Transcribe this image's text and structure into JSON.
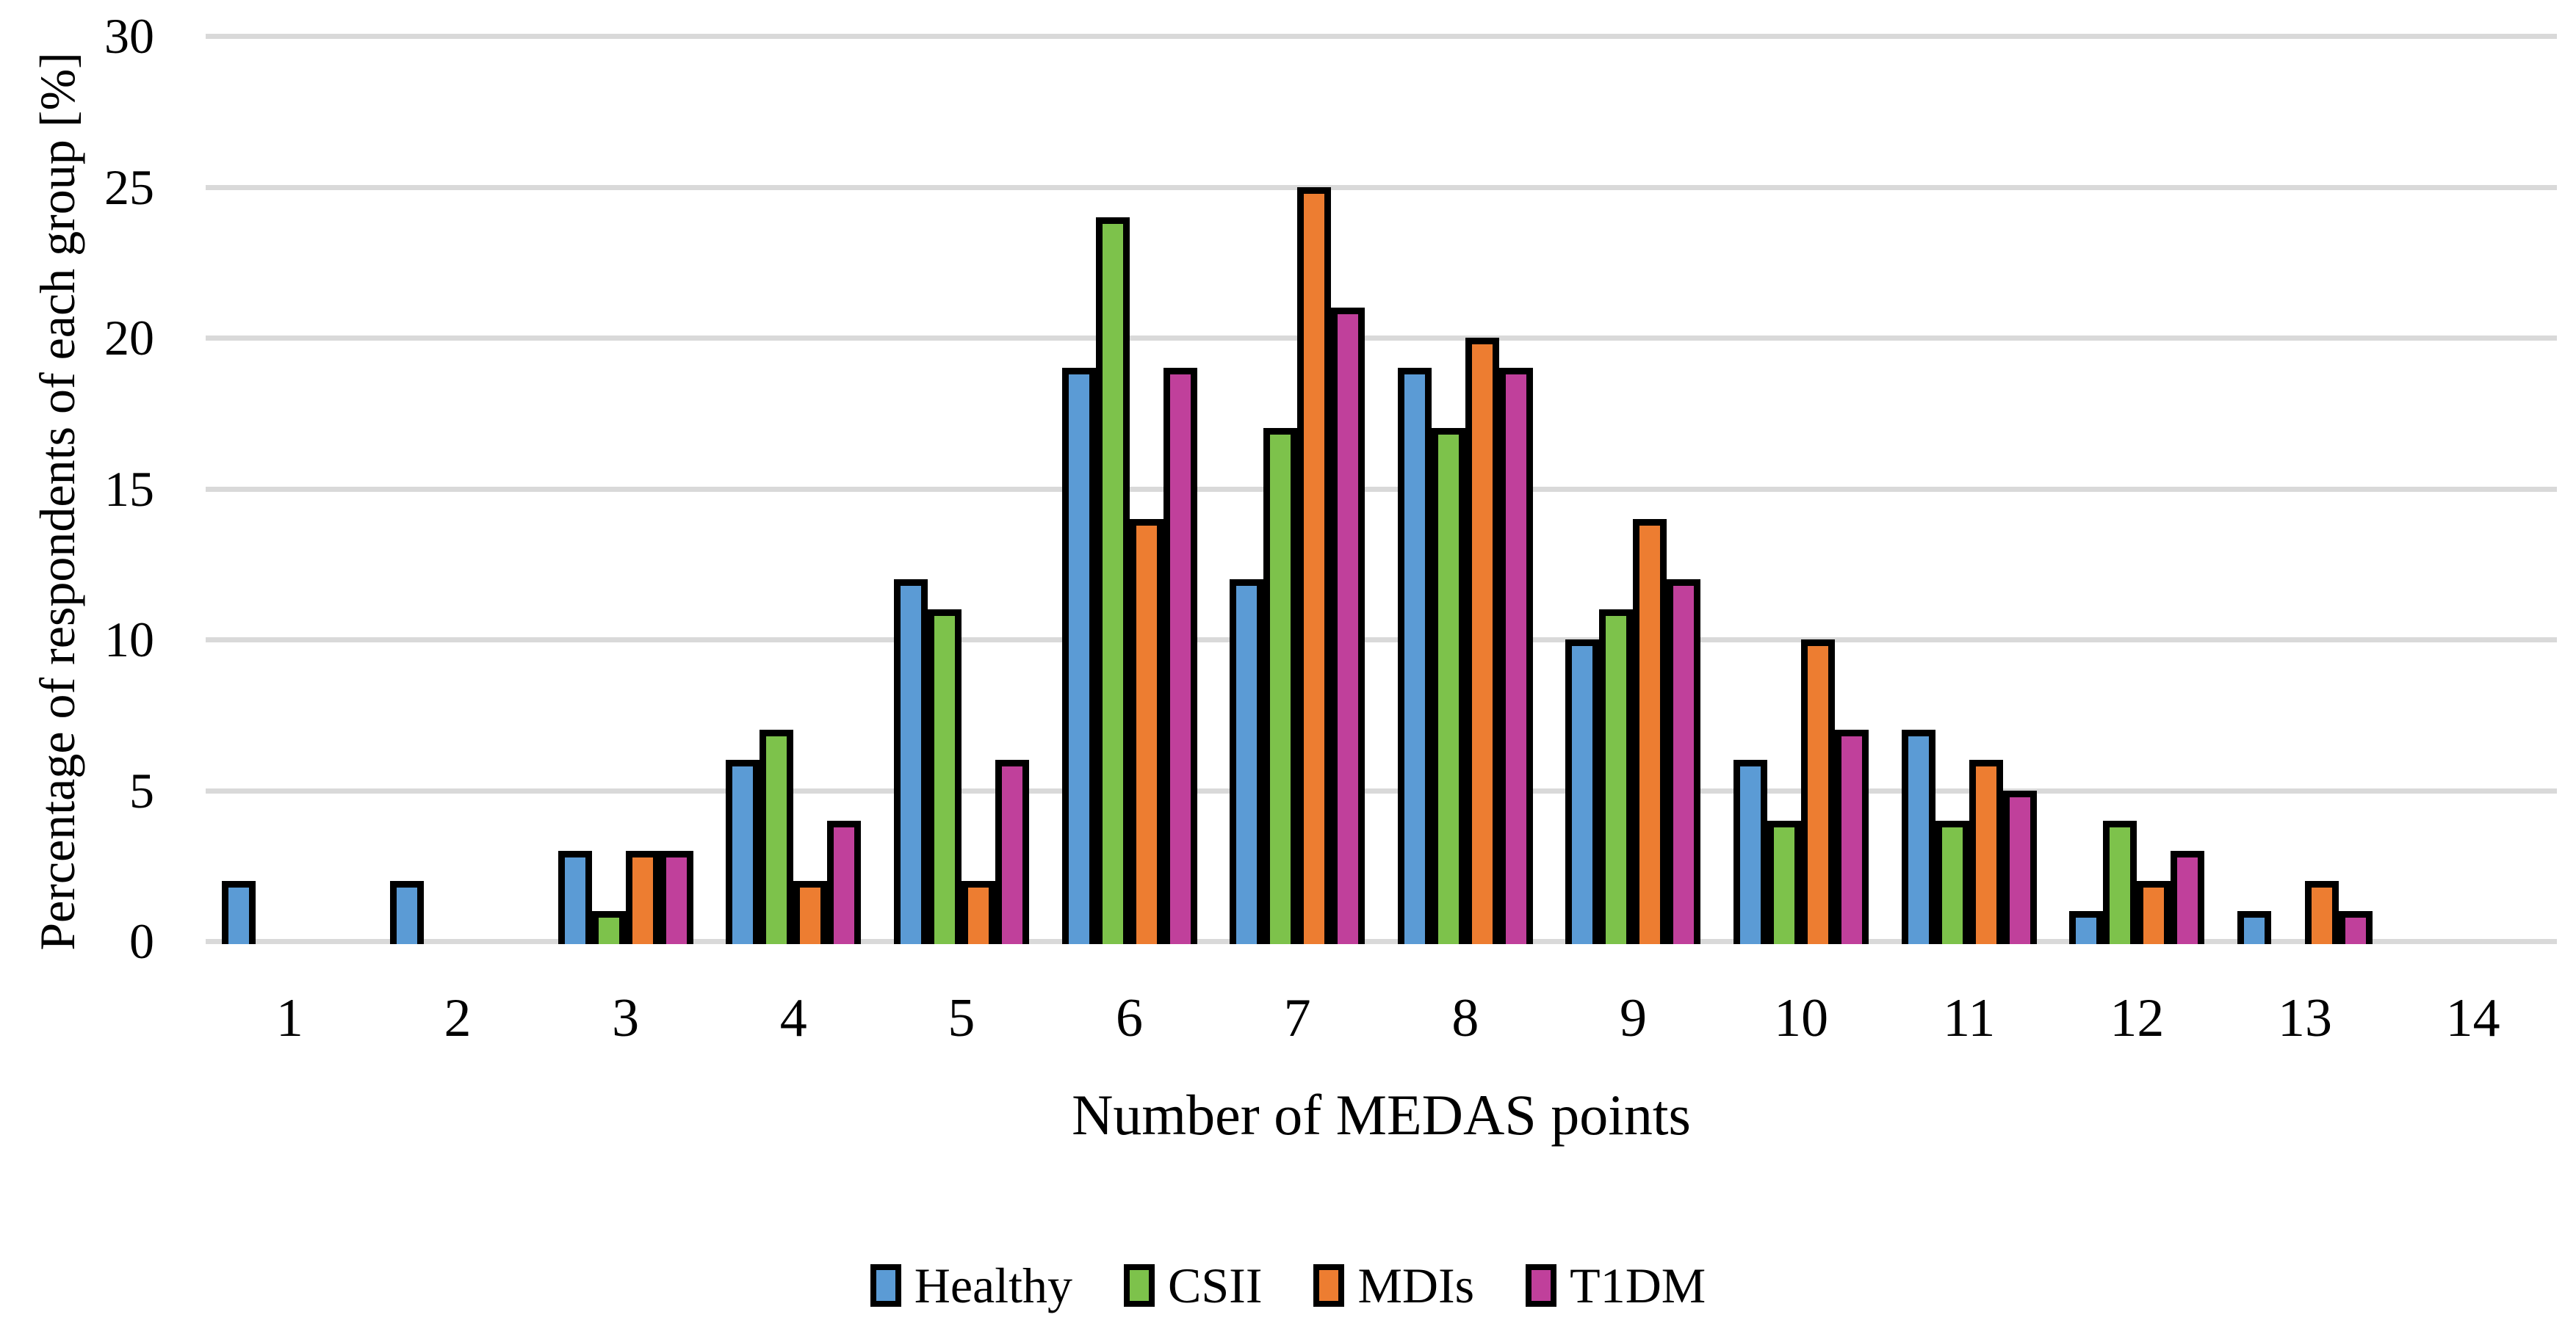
{
  "chart_data": {
    "type": "bar",
    "title": "",
    "xlabel": "Number of MEDAS points",
    "ylabel": "Percentage of respondents of each group [%]",
    "categories": [
      "1",
      "2",
      "3",
      "4",
      "5",
      "6",
      "7",
      "8",
      "9",
      "10",
      "11",
      "12",
      "13",
      "14"
    ],
    "series": [
      {
        "name": "Healthy",
        "color": "#5B9BD5",
        "values": [
          2,
          2,
          3,
          6,
          12,
          19,
          12,
          19,
          10,
          6,
          7,
          1,
          1,
          0
        ]
      },
      {
        "name": "CSII",
        "color": "#7DC24B",
        "values": [
          0,
          0,
          1,
          7,
          11,
          24,
          17,
          17,
          11,
          4,
          4,
          4,
          0,
          0
        ]
      },
      {
        "name": "MDIs",
        "color": "#ED7D31",
        "values": [
          0,
          0,
          3,
          2,
          2,
          14,
          25,
          20,
          14,
          10,
          6,
          2,
          2,
          0
        ]
      },
      {
        "name": "T1DM",
        "color": "#C0409B",
        "values": [
          0,
          0,
          3,
          4,
          6,
          19,
          21,
          19,
          12,
          7,
          5,
          3,
          1,
          0
        ]
      }
    ],
    "ylim": [
      0,
      30
    ],
    "ytick_step": 5,
    "yticks": [
      "0",
      "5",
      "10",
      "15",
      "20",
      "25",
      "30"
    ],
    "grid": "horizontal",
    "gridline_color": "#D9D9D9",
    "bar_border_color": "#000000",
    "background_color": "#FFFFFF",
    "legend_position": "bottom"
  }
}
